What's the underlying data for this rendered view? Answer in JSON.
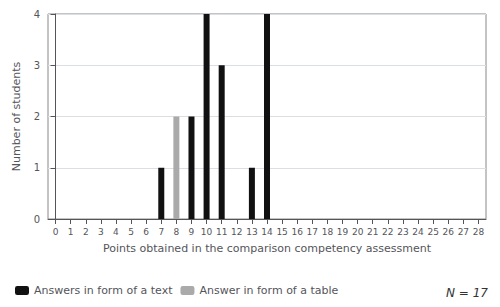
{
  "chart_data": {
    "type": "bar",
    "xlabel": "Points obtained in the comparison competency assessment",
    "ylabel": "Number of students",
    "series": [
      {
        "name": "Answers in form of a text",
        "color": "#111111",
        "x": [
          7,
          9,
          10,
          11,
          13,
          14
        ],
        "values": [
          1,
          2,
          4,
          3,
          1,
          4
        ]
      },
      {
        "name": "Answer in form of a table",
        "color": "#aaaaaa",
        "x": [
          8
        ],
        "values": [
          2
        ]
      }
    ],
    "xlim": [
      -0.5,
      28.5
    ],
    "xticks": [
      0,
      1,
      2,
      3,
      4,
      5,
      6,
      7,
      8,
      9,
      10,
      11,
      12,
      13,
      14,
      15,
      16,
      17,
      18,
      19,
      20,
      21,
      22,
      23,
      24,
      25,
      26,
      27,
      28
    ],
    "ylim": [
      0,
      4
    ],
    "yticks": [
      0,
      1,
      2,
      3,
      4
    ],
    "grid": true,
    "legend": "bottom left",
    "annotations": [
      "N = 17"
    ]
  }
}
